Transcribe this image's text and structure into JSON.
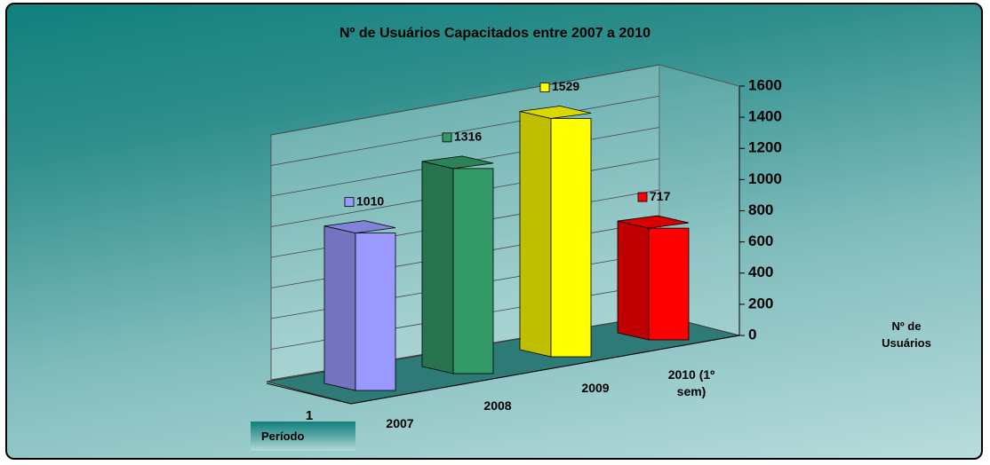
{
  "chart_data": {
    "type": "bar3d",
    "title": "Nº de Usuários Capacitados entre 2007 a 2010",
    "categories": [
      "2007",
      "2008",
      "2009",
      "2010 (1º sem)"
    ],
    "values": [
      1010,
      1316,
      1529,
      717
    ],
    "colors": [
      "#9999ff",
      "#339966",
      "#ffff00",
      "#ff0000"
    ],
    "series_name": "1",
    "x_label": "Período",
    "y_label": "Nº de Usuários",
    "ylim": [
      0,
      1600
    ],
    "yticks": [
      0,
      200,
      400,
      600,
      800,
      1000,
      1200,
      1400,
      1600
    ],
    "grid": true
  }
}
